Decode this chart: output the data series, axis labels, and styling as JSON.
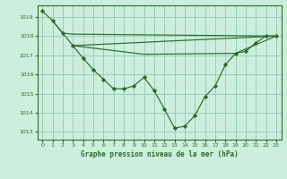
{
  "title": "Graphe pression niveau de la mer (hPa)",
  "bg_color": "#cceedd",
  "grid_color": "#99ccbb",
  "line_color": "#2d6a2d",
  "xlim": [
    -0.5,
    23.5
  ],
  "ylim": [
    1012.6,
    1019.6
  ],
  "yticks": [
    1013,
    1014,
    1015,
    1016,
    1017,
    1018,
    1019
  ],
  "xticks": [
    0,
    1,
    2,
    3,
    4,
    5,
    6,
    7,
    8,
    9,
    10,
    11,
    12,
    13,
    14,
    15,
    16,
    17,
    18,
    19,
    20,
    21,
    22,
    23
  ],
  "main_curve": {
    "x": [
      0,
      1,
      2,
      3,
      4,
      5,
      6,
      7,
      8,
      9,
      10,
      11,
      12,
      13,
      14,
      15,
      16,
      17,
      18,
      19,
      20,
      21,
      22,
      23
    ],
    "y": [
      1019.3,
      1018.8,
      1018.15,
      1017.5,
      1016.85,
      1016.25,
      1015.75,
      1015.25,
      1015.25,
      1015.4,
      1015.85,
      1015.15,
      1014.2,
      1013.2,
      1013.3,
      1013.85,
      1014.85,
      1015.4,
      1016.5,
      1017.1,
      1017.2,
      1017.65,
      1018.0,
      1018.0
    ]
  },
  "flat_line1": {
    "x": [
      1,
      2,
      3,
      23
    ],
    "y": [
      1018.8,
      1018.15,
      1018.1,
      1018.0
    ]
  },
  "flat_line2": {
    "x": [
      3,
      23
    ],
    "y": [
      1017.5,
      1018.0
    ]
  },
  "flat_line3": {
    "x": [
      3,
      10,
      19,
      23
    ],
    "y": [
      1017.5,
      1017.05,
      1017.1,
      1018.0
    ]
  }
}
